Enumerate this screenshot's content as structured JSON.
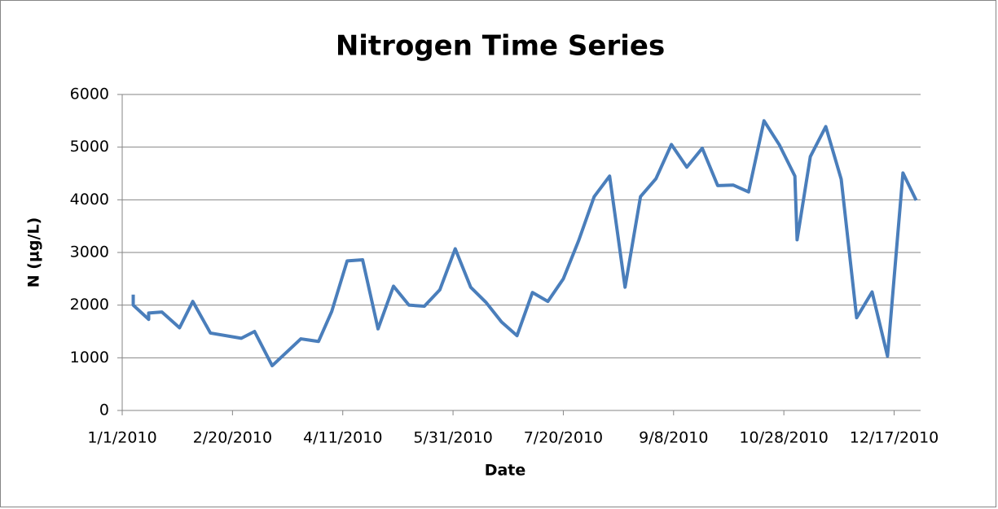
{
  "chart_data": {
    "type": "line",
    "title": "Nitrogen Time Series",
    "x_label": "Date",
    "y_label": "N (µg/L)",
    "x": [
      "1/6/2010",
      "1/6/2010",
      "1/13/2010",
      "1/13/2010",
      "1/19/2010",
      "1/27/2010",
      "2/2/2010",
      "2/10/2010",
      "2/24/2010",
      "3/2/2010",
      "3/10/2010",
      "3/23/2010",
      "3/31/2010",
      "4/6/2010",
      "4/13/2010",
      "4/20/2010",
      "4/27/2010",
      "5/4/2010",
      "5/11/2010",
      "5/18/2010",
      "5/25/2010",
      "6/1/2010",
      "6/8/2010",
      "6/15/2010",
      "6/22/2010",
      "6/29/2010",
      "7/6/2010",
      "7/13/2010",
      "7/20/2010",
      "7/27/2010",
      "8/3/2010",
      "8/10/2010",
      "8/17/2010",
      "8/24/2010",
      "8/31/2010",
      "9/7/2010",
      "9/14/2010",
      "9/21/2010",
      "9/28/2010",
      "10/5/2010",
      "10/12/2010",
      "10/19/2010",
      "10/26/2010",
      "11/2/2010",
      "11/3/2010",
      "11/9/2010",
      "11/16/2010",
      "11/23/2010",
      "11/30/2010",
      "12/7/2010",
      "12/14/2010",
      "12/21/2010",
      "12/27/2010"
    ],
    "series": [
      {
        "name": "N",
        "color": "#4a7ebb",
        "values": [
          2200,
          2000,
          1730,
          1850,
          1870,
          1570,
          2070,
          1470,
          1370,
          1500,
          850,
          1360,
          1310,
          1880,
          2840,
          2860,
          1550,
          2360,
          2000,
          1980,
          2290,
          3070,
          2340,
          2050,
          1680,
          1420,
          2240,
          2070,
          2500,
          3230,
          4060,
          4450,
          2340,
          4060,
          4400,
          5050,
          4620,
          4980,
          4270,
          4280,
          4150,
          5500,
          5040,
          4450,
          3240,
          4820,
          5390,
          4390,
          1760,
          2250,
          1030,
          4510,
          3990
        ]
      }
    ],
    "xlim": [
      "1/1/2010",
      "12/29/2010"
    ],
    "xticks": [
      "1/1/2010",
      "2/20/2010",
      "4/11/2010",
      "5/31/2010",
      "7/20/2010",
      "9/8/2010",
      "10/28/2010",
      "12/17/2010"
    ],
    "ylim": [
      0,
      6000
    ],
    "yticks": [
      0,
      1000,
      2000,
      3000,
      4000,
      5000,
      6000
    ],
    "grid": true
  }
}
